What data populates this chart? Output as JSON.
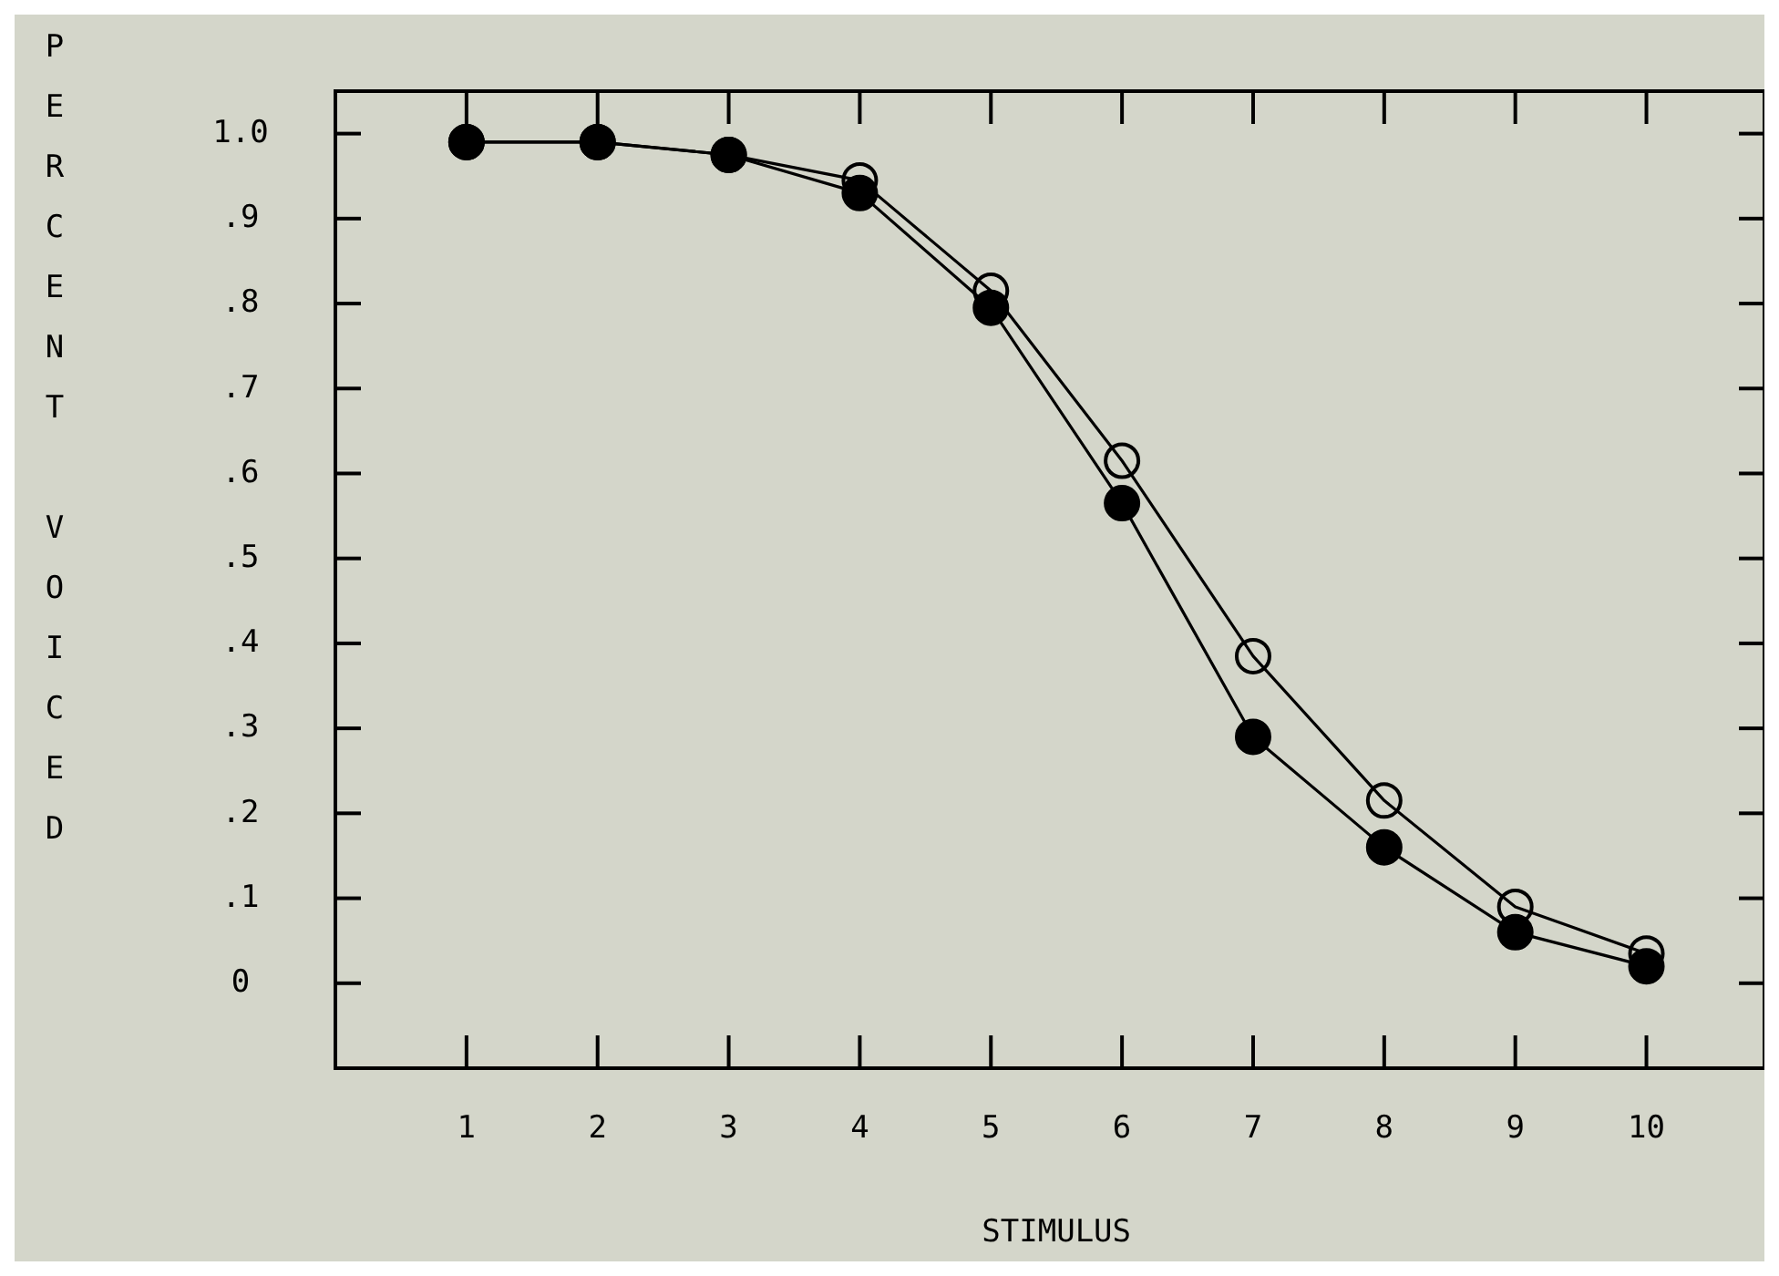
{
  "chart_data": {
    "type": "line",
    "xlabel": "STIMULUS",
    "ylabel": "PERCENT VOICED",
    "x": [
      1,
      2,
      3,
      4,
      5,
      6,
      7,
      8,
      9,
      10
    ],
    "series": [
      {
        "color": "#000000",
        "values": [
          0.99,
          0.99,
          0.975,
          0.93,
          0.795,
          0.565,
          0.29,
          0.16,
          0.06,
          0.02
        ]
      },
      {
        "color": "#000000",
        "values": [
          0.99,
          0.99,
          0.975,
          0.945,
          0.815,
          0.615,
          0.385,
          0.215,
          0.09,
          0.035
        ]
      }
    ],
    "xlim": [
      0,
      10.9
    ],
    "ylim": [
      -0.1,
      1.05
    ],
    "xticks": [
      1,
      2,
      3,
      4,
      5,
      6,
      7,
      8,
      9,
      10
    ],
    "yticks": [
      0,
      {
        "value": 0.1,
        "label": ".1"
      },
      {
        "value": 0.2,
        "label": ".2"
      },
      {
        "value": 0.3,
        "label": ".3"
      },
      {
        "value": 0.4,
        "label": ".4"
      },
      {
        "value": 0.5,
        "label": ".5"
      },
      {
        "value": 0.6,
        "label": ".6"
      },
      {
        "value": 0.7,
        "label": ".7"
      },
      {
        "value": 0.8,
        "label": ".8"
      },
      {
        "value": 0.9,
        "label": ".9"
      },
      {
        "value": 1.0,
        "label": "1.0"
      }
    ],
    "marker": "circle",
    "line_style": "solid"
  }
}
